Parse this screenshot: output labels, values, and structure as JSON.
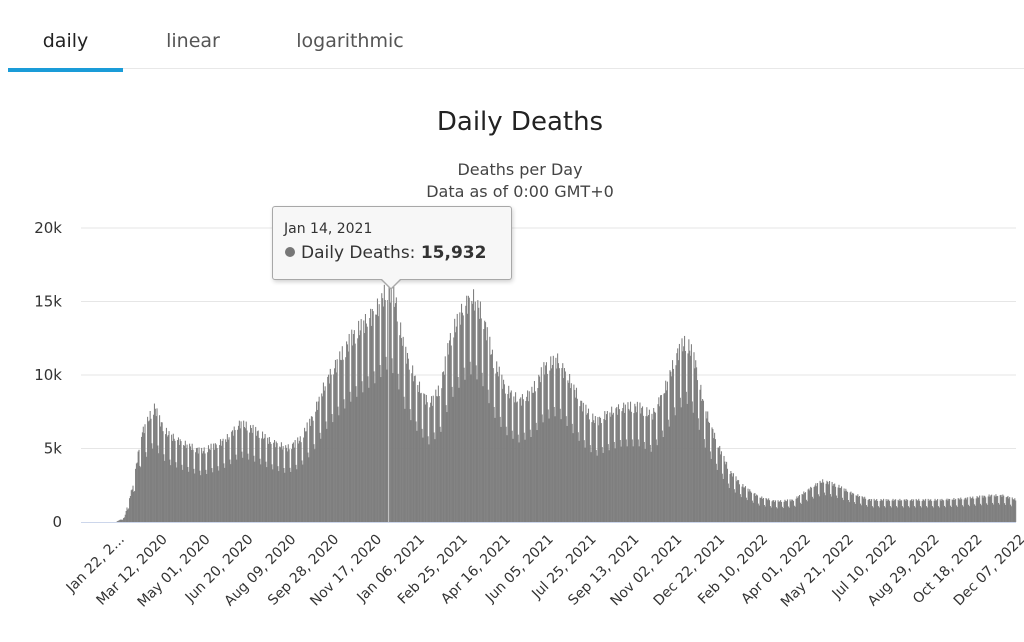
{
  "tabs": [
    {
      "label": "daily",
      "active": true
    },
    {
      "label": "linear",
      "active": false
    },
    {
      "label": "logarithmic",
      "active": false
    }
  ],
  "colors": {
    "accent": "#1a9cd8",
    "bar": "#7f7f7f",
    "grid": "#e6e6e6",
    "axis": "#ccd6eb"
  },
  "chart_data": {
    "type": "bar",
    "title": "Daily Deaths",
    "subtitle_line1": "Deaths per Day",
    "subtitle_line2": "Data as of 0:00 GMT+0",
    "ylim": [
      0,
      20000
    ],
    "y_ticks": [
      {
        "value": 0,
        "label": "0"
      },
      {
        "value": 5000,
        "label": "5k"
      },
      {
        "value": 10000,
        "label": "10k"
      },
      {
        "value": 15000,
        "label": "15k"
      },
      {
        "value": 20000,
        "label": "20k"
      }
    ],
    "x_tick_labels": [
      "Jan 22, 2...",
      "Mar 12, 2020",
      "May 01, 2020",
      "Jun 20, 2020",
      "Aug 09, 2020",
      "Sep 28, 2020",
      "Nov 17, 2020",
      "Jan 06, 2021",
      "Feb 25, 2021",
      "Apr 16, 2021",
      "Jun 05, 2021",
      "Jul 25, 2021",
      "Sep 13, 2021",
      "Nov 02, 2021",
      "Dec 22, 2021",
      "Feb 10, 2022",
      "Apr 01, 2022",
      "May 21, 2022",
      "Jul 10, 2022",
      "Aug 29, 2022",
      "Oct 18, 2022",
      "Dec 07, 2022"
    ],
    "x_tick_interval_days": 50,
    "total_days": 1090,
    "series": [
      {
        "name": "Daily Deaths",
        "trend_points": [
          [
            0,
            0
          ],
          [
            40,
            0
          ],
          [
            50,
            300
          ],
          [
            60,
            2500
          ],
          [
            70,
            6000
          ],
          [
            80,
            7200
          ],
          [
            85,
            7800
          ],
          [
            92,
            6800
          ],
          [
            100,
            6000
          ],
          [
            120,
            5300
          ],
          [
            140,
            4800
          ],
          [
            160,
            5300
          ],
          [
            170,
            5700
          ],
          [
            185,
            6700
          ],
          [
            200,
            6300
          ],
          [
            220,
            5500
          ],
          [
            240,
            5000
          ],
          [
            255,
            5600
          ],
          [
            270,
            7200
          ],
          [
            285,
            9500
          ],
          [
            300,
            11000
          ],
          [
            315,
            12500
          ],
          [
            330,
            13500
          ],
          [
            345,
            14500
          ],
          [
            358,
            15932
          ],
          [
            366,
            15000
          ],
          [
            375,
            12000
          ],
          [
            390,
            9500
          ],
          [
            405,
            8000
          ],
          [
            418,
            9000
          ],
          [
            430,
            12500
          ],
          [
            445,
            14500
          ],
          [
            455,
            15300
          ],
          [
            468,
            14000
          ],
          [
            480,
            11000
          ],
          [
            495,
            9000
          ],
          [
            510,
            8200
          ],
          [
            525,
            8800
          ],
          [
            540,
            10500
          ],
          [
            555,
            11000
          ],
          [
            570,
            9500
          ],
          [
            585,
            7800
          ],
          [
            600,
            6800
          ],
          [
            615,
            7400
          ],
          [
            630,
            7800
          ],
          [
            650,
            7800
          ],
          [
            665,
            7200
          ],
          [
            680,
            9000
          ],
          [
            695,
            11500
          ],
          [
            705,
            12300
          ],
          [
            715,
            11000
          ],
          [
            725,
            8000
          ],
          [
            740,
            5500
          ],
          [
            755,
            3500
          ],
          [
            770,
            2500
          ],
          [
            790,
            1700
          ],
          [
            810,
            1400
          ],
          [
            830,
            1500
          ],
          [
            855,
            2500
          ],
          [
            865,
            2800
          ],
          [
            880,
            2500
          ],
          [
            900,
            1900
          ],
          [
            920,
            1500
          ],
          [
            960,
            1500
          ],
          [
            1000,
            1500
          ],
          [
            1030,
            1600
          ],
          [
            1060,
            1800
          ],
          [
            1075,
            1800
          ],
          [
            1090,
            1500
          ]
        ]
      }
    ],
    "tooltip": {
      "date": "Jan 14, 2021",
      "series_label": "Daily Deaths: ",
      "value_label": "15,932",
      "day_index": 358
    }
  }
}
